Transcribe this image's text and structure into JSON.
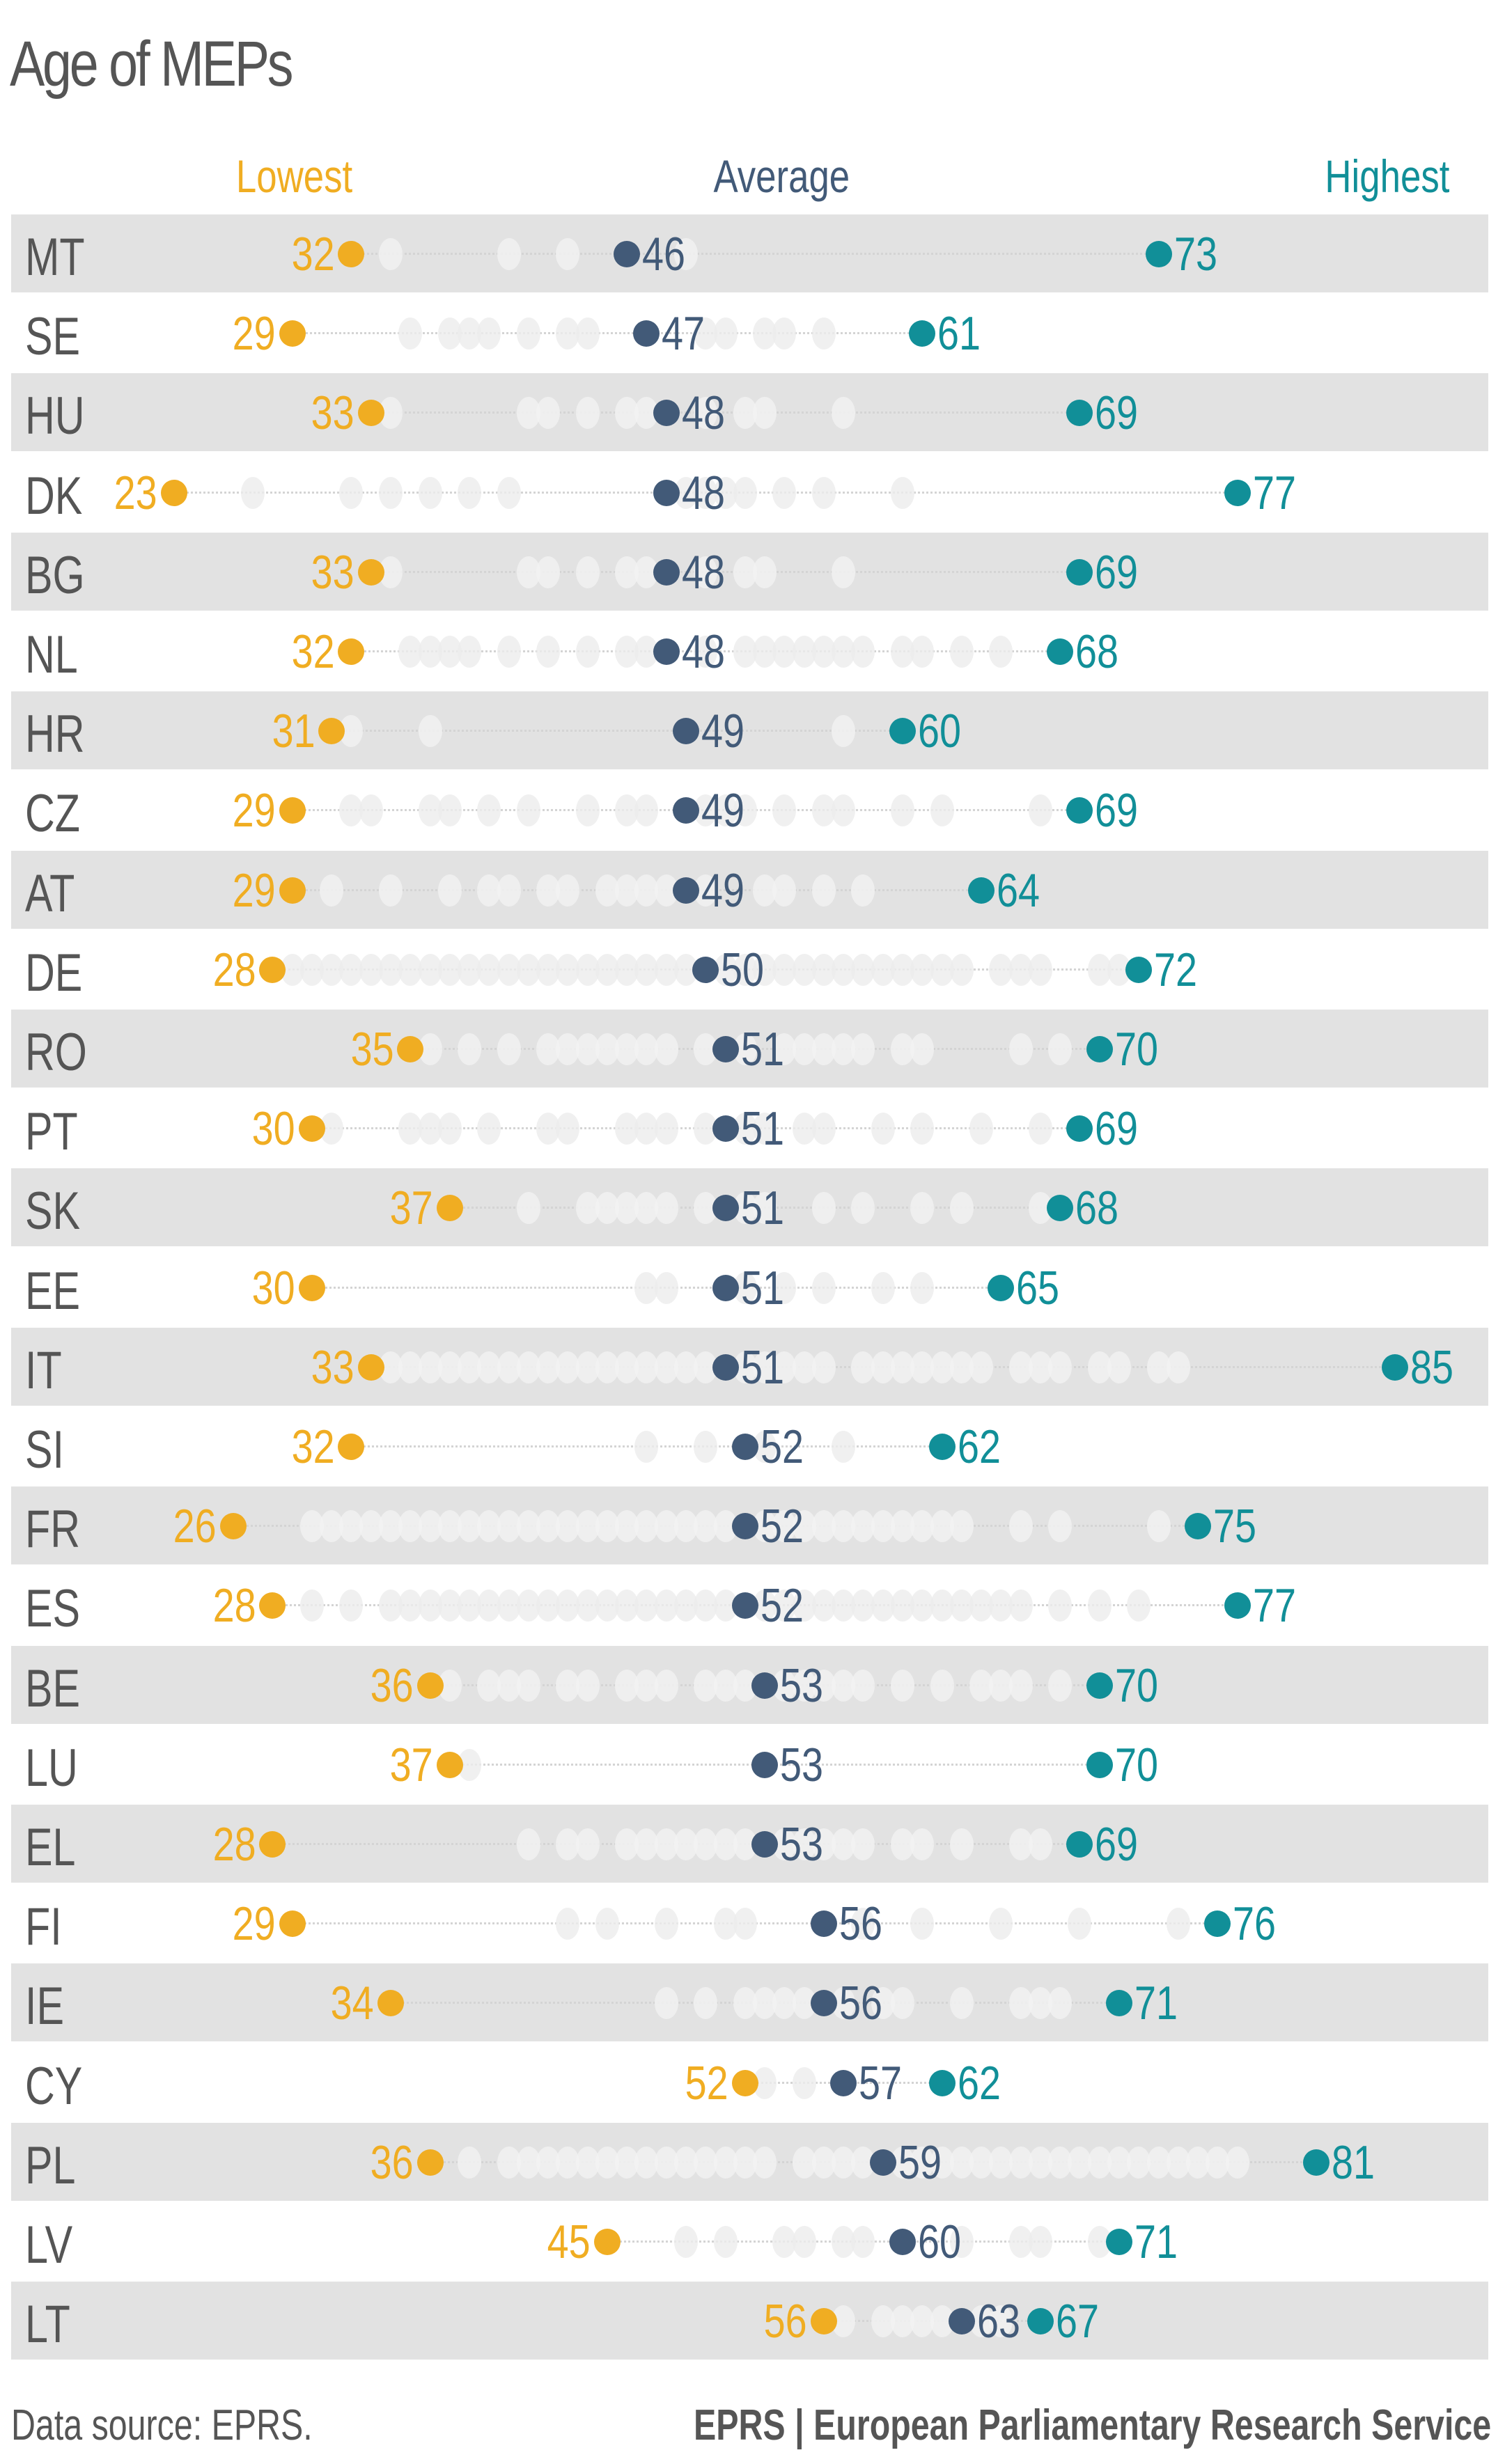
{
  "title": "Age of MEPs",
  "headers": {
    "lowest": "Lowest",
    "average": "Average",
    "highest": "Highest"
  },
  "colors": {
    "lowest": "#f0ad22",
    "average": "#425a78",
    "highest": "#118f98",
    "text": "#555555",
    "row_shade": "#e2e2e2",
    "ghost": "#ececec"
  },
  "footer": {
    "source": "Data source: EPRS.",
    "brand": "EPRS | European Parliamentary Research Service"
  },
  "chart_data": {
    "type": "dot-range",
    "title": "Age of MEPs",
    "legend": [
      "Lowest",
      "Average",
      "Highest"
    ],
    "categories": [
      "MT",
      "SE",
      "HU",
      "DK",
      "BG",
      "NL",
      "HR",
      "CZ",
      "AT",
      "DE",
      "RO",
      "PT",
      "SK",
      "EE",
      "IT",
      "SI",
      "FR",
      "ES",
      "BE",
      "LU",
      "EL",
      "FI",
      "IE",
      "CY",
      "PL",
      "LV",
      "LT"
    ],
    "series": [
      {
        "name": "Lowest",
        "values": [
          32,
          29,
          33,
          23,
          33,
          32,
          31,
          29,
          29,
          28,
          35,
          30,
          37,
          30,
          33,
          32,
          26,
          28,
          36,
          37,
          28,
          29,
          34,
          52,
          36,
          45,
          56
        ]
      },
      {
        "name": "Average",
        "values": [
          46,
          47,
          48,
          48,
          48,
          48,
          49,
          49,
          49,
          50,
          51,
          51,
          51,
          51,
          51,
          52,
          52,
          52,
          53,
          53,
          53,
          56,
          56,
          57,
          59,
          60,
          63
        ]
      },
      {
        "name": "Highest",
        "values": [
          73,
          61,
          69,
          77,
          69,
          68,
          60,
          69,
          64,
          72,
          70,
          69,
          68,
          65,
          85,
          62,
          75,
          77,
          70,
          70,
          69,
          76,
          71,
          62,
          81,
          71,
          67
        ]
      }
    ],
    "xlim": [
      23,
      85
    ],
    "source": "Data source: EPRS."
  },
  "rows": [
    {
      "code": "MT",
      "low": 32,
      "avg": 46,
      "high": 73,
      "ghosts": [
        34,
        40,
        43,
        49
      ]
    },
    {
      "code": "SE",
      "low": 29,
      "avg": 47,
      "high": 61,
      "ghosts": [
        35,
        37,
        38,
        39,
        41,
        43,
        44,
        50,
        51,
        53,
        54,
        56
      ]
    },
    {
      "code": "HU",
      "low": 33,
      "avg": 48,
      "high": 69,
      "ghosts": [
        34,
        41,
        42,
        44,
        46,
        47,
        50,
        52,
        53,
        57
      ]
    },
    {
      "code": "DK",
      "low": 23,
      "avg": 48,
      "high": 77,
      "ghosts": [
        27,
        32,
        34,
        36,
        38,
        40,
        49,
        50,
        51,
        52,
        54,
        56,
        60
      ]
    },
    {
      "code": "BG",
      "low": 33,
      "avg": 48,
      "high": 69,
      "ghosts": [
        34,
        41,
        42,
        44,
        46,
        47,
        50,
        52,
        53,
        57
      ]
    },
    {
      "code": "NL",
      "low": 32,
      "avg": 48,
      "high": 68,
      "ghosts": [
        35,
        36,
        37,
        38,
        40,
        42,
        44,
        46,
        47,
        50,
        52,
        53,
        54,
        55,
        56,
        57,
        58,
        60,
        61,
        63,
        65
      ]
    },
    {
      "code": "HR",
      "low": 31,
      "avg": 49,
      "high": 60,
      "ghosts": [
        32,
        36,
        57
      ]
    },
    {
      "code": "CZ",
      "low": 29,
      "avg": 49,
      "high": 69,
      "ghosts": [
        32,
        33,
        36,
        37,
        39,
        41,
        44,
        46,
        47,
        50,
        51,
        52,
        54,
        56,
        57,
        60,
        62,
        67
      ]
    },
    {
      "code": "AT",
      "low": 29,
      "avg": 49,
      "high": 64,
      "ghosts": [
        31,
        34,
        37,
        39,
        40,
        42,
        43,
        45,
        46,
        47,
        48,
        50,
        53,
        54,
        56,
        58
      ]
    },
    {
      "code": "DE",
      "low": 28,
      "avg": 50,
      "high": 72,
      "ghosts": [
        29,
        30,
        31,
        32,
        33,
        34,
        35,
        36,
        37,
        38,
        39,
        40,
        41,
        42,
        43,
        44,
        45,
        46,
        47,
        48,
        49,
        51,
        52,
        53,
        54,
        55,
        56,
        57,
        58,
        59,
        60,
        61,
        62,
        63,
        65,
        66,
        67,
        70,
        71
      ]
    },
    {
      "code": "RO",
      "low": 35,
      "avg": 51,
      "high": 70,
      "ghosts": [
        36,
        38,
        40,
        42,
        43,
        44,
        45,
        46,
        47,
        48,
        50,
        52,
        54,
        55,
        56,
        57,
        58,
        60,
        61,
        66,
        68
      ]
    },
    {
      "code": "PT",
      "low": 30,
      "avg": 51,
      "high": 69,
      "ghosts": [
        31,
        35,
        36,
        37,
        39,
        42,
        43,
        46,
        47,
        48,
        50,
        52,
        53,
        55,
        56,
        59,
        61,
        64,
        67
      ]
    },
    {
      "code": "SK",
      "low": 37,
      "avg": 51,
      "high": 68,
      "ghosts": [
        41,
        44,
        45,
        46,
        47,
        48,
        50,
        52,
        53,
        56,
        58,
        61,
        63,
        67
      ]
    },
    {
      "code": "EE",
      "low": 30,
      "avg": 51,
      "high": 65,
      "ghosts": [
        47,
        48,
        52,
        54,
        56,
        59,
        61
      ]
    },
    {
      "code": "IT",
      "low": 33,
      "avg": 51,
      "high": 85,
      "ghosts": [
        34,
        35,
        36,
        37,
        38,
        39,
        40,
        41,
        42,
        43,
        44,
        45,
        46,
        47,
        48,
        49,
        50,
        52,
        53,
        54,
        55,
        56,
        58,
        59,
        60,
        61,
        62,
        63,
        64,
        66,
        67,
        68,
        70,
        71,
        73,
        74
      ]
    },
    {
      "code": "SI",
      "low": 32,
      "avg": 52,
      "high": 62,
      "ghosts": [
        47,
        50,
        53,
        57
      ]
    },
    {
      "code": "FR",
      "low": 26,
      "avg": 52,
      "high": 75,
      "ghosts": [
        30,
        31,
        32,
        33,
        34,
        35,
        36,
        37,
        38,
        39,
        40,
        41,
        42,
        43,
        44,
        45,
        46,
        47,
        48,
        49,
        50,
        51,
        53,
        54,
        55,
        56,
        57,
        58,
        59,
        60,
        61,
        62,
        63,
        66,
        68,
        73
      ]
    },
    {
      "code": "ES",
      "low": 28,
      "avg": 52,
      "high": 77,
      "ghosts": [
        30,
        32,
        34,
        35,
        36,
        37,
        38,
        39,
        40,
        41,
        42,
        43,
        44,
        45,
        46,
        47,
        48,
        49,
        50,
        51,
        53,
        54,
        55,
        56,
        57,
        58,
        59,
        60,
        61,
        62,
        63,
        64,
        65,
        66,
        68,
        70,
        72
      ]
    },
    {
      "code": "BE",
      "low": 36,
      "avg": 53,
      "high": 70,
      "ghosts": [
        37,
        39,
        40,
        41,
        43,
        44,
        46,
        47,
        48,
        50,
        51,
        52,
        54,
        55,
        56,
        57,
        58,
        60,
        62,
        64,
        65,
        66,
        68
      ]
    },
    {
      "code": "LU",
      "low": 37,
      "avg": 53,
      "high": 70,
      "ghosts": [
        38
      ]
    },
    {
      "code": "EL",
      "low": 28,
      "avg": 53,
      "high": 69,
      "ghosts": [
        41,
        43,
        44,
        46,
        47,
        48,
        49,
        50,
        51,
        52,
        54,
        55,
        56,
        57,
        58,
        60,
        61,
        63,
        66,
        67
      ]
    },
    {
      "code": "FI",
      "low": 29,
      "avg": 56,
      "high": 76,
      "ghosts": [
        43,
        45,
        48,
        51,
        52,
        58,
        61,
        65,
        69,
        74
      ]
    },
    {
      "code": "IE",
      "low": 34,
      "avg": 56,
      "high": 71,
      "ghosts": [
        48,
        50,
        52,
        53,
        54,
        55,
        57,
        59,
        60,
        63,
        66,
        67,
        68
      ]
    },
    {
      "code": "CY",
      "low": 52,
      "avg": 57,
      "high": 62,
      "ghosts": [
        53,
        55
      ]
    },
    {
      "code": "PL",
      "low": 36,
      "avg": 59,
      "high": 81,
      "ghosts": [
        38,
        40,
        41,
        42,
        43,
        44,
        45,
        46,
        47,
        48,
        49,
        50,
        51,
        52,
        53,
        55,
        56,
        57,
        58,
        60,
        61,
        62,
        63,
        64,
        65,
        66,
        67,
        68,
        69,
        70,
        71,
        72,
        73,
        74,
        75,
        76,
        77
      ]
    },
    {
      "code": "LV",
      "low": 45,
      "avg": 60,
      "high": 71,
      "ghosts": [
        49,
        51,
        54,
        55,
        57,
        58,
        63,
        66,
        67,
        70
      ]
    },
    {
      "code": "LT",
      "low": 56,
      "avg": 63,
      "high": 67,
      "ghosts": [
        57,
        59,
        60,
        61,
        62,
        64,
        65
      ]
    }
  ]
}
